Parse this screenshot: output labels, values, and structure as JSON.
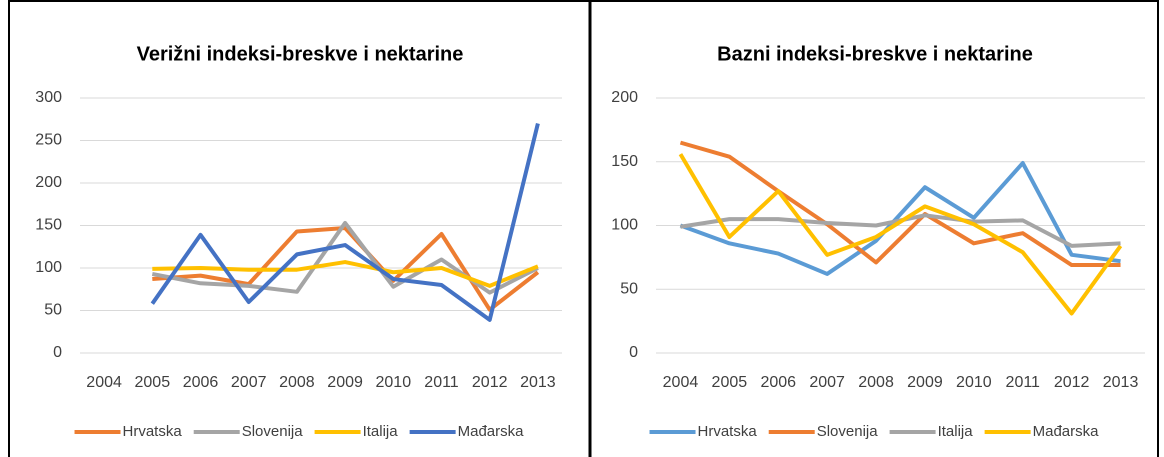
{
  "chart_data": [
    {
      "type": "line",
      "title": "Verižni indeksi-breskve i nektarine",
      "categories": [
        "2004",
        "2005",
        "2006",
        "2007",
        "2008",
        "2009",
        "2010",
        "2011",
        "2012",
        "2013"
      ],
      "series": [
        {
          "name": "Hrvatska",
          "color": "#ed7d31",
          "values": [
            null,
            87,
            91,
            81,
            143,
            147,
            85,
            140,
            51,
            95
          ]
        },
        {
          "name": "Slovenija",
          "color": "#a5a5a5",
          "values": [
            null,
            93,
            82,
            79,
            72,
            153,
            78,
            110,
            71,
            100
          ]
        },
        {
          "name": "Italija",
          "color": "#ffc000",
          "values": [
            null,
            99,
            100,
            98,
            98,
            107,
            95,
            100,
            79,
            102
          ]
        },
        {
          "name": "Mađarska",
          "color": "#4472c4",
          "values": [
            null,
            58,
            139,
            60,
            116,
            127,
            87,
            80,
            39,
            270
          ]
        }
      ],
      "ylim": [
        0,
        300
      ],
      "yticks": [
        0,
        50,
        100,
        150,
        200,
        250,
        300
      ],
      "grid": true,
      "legend": "bottom"
    },
    {
      "type": "line",
      "title": "Bazni indeksi-breskve i nektarine",
      "categories": [
        "2004",
        "2005",
        "2006",
        "2007",
        "2008",
        "2009",
        "2010",
        "2011",
        "2012",
        "2013"
      ],
      "series": [
        {
          "name": "Hrvatska",
          "color": "#5b9bd5",
          "values": [
            100,
            86,
            78,
            62,
            88,
            130,
            106,
            149,
            77,
            72
          ]
        },
        {
          "name": "Slovenija",
          "color": "#ed7d31",
          "values": [
            165,
            154,
            127,
            101,
            71,
            109,
            86,
            94,
            69,
            69
          ]
        },
        {
          "name": "Italija",
          "color": "#a5a5a5",
          "values": [
            99,
            105,
            105,
            102,
            100,
            108,
            103,
            104,
            84,
            86
          ]
        },
        {
          "name": "Mađarska",
          "color": "#ffc000",
          "values": [
            156,
            91,
            127,
            77,
            91,
            115,
            101,
            79,
            31,
            84
          ]
        }
      ],
      "ylim": [
        0,
        200
      ],
      "yticks": [
        0,
        50,
        100,
        150,
        200
      ],
      "grid": true,
      "legend": "bottom"
    }
  ]
}
